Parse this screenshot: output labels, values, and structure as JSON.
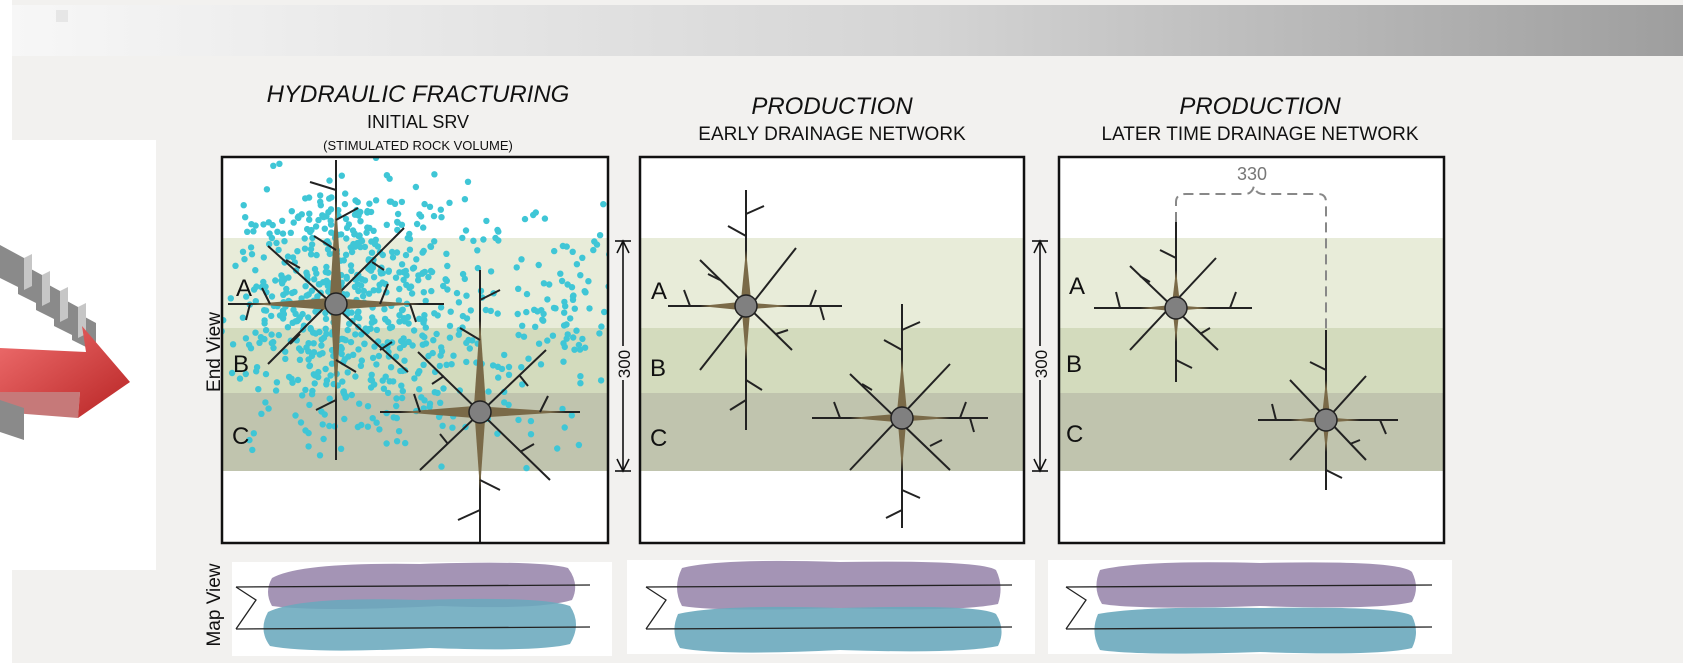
{
  "panels": [
    {
      "title": "HYDRAULIC FRACTURING",
      "subtitle": "INITIAL   SRV",
      "note": "(STIMULATED ROCK VOLUME)"
    },
    {
      "title": "PRODUCTION",
      "subtitle": "EARLY DRAINAGE NETWORK"
    },
    {
      "title": "PRODUCTION",
      "subtitle": "LATER TIME DRAINAGE NETWORK",
      "spacing_label": "330"
    }
  ],
  "layers": [
    "A",
    "B",
    "C"
  ],
  "side_labels": {
    "end_view": "End View",
    "map_view": "Map View"
  },
  "thickness_label": "300",
  "colors": {
    "layer_a": "#e8ecd9",
    "layer_b": "#d3dbbd",
    "layer_c": "#c0c4ae",
    "proppant": "#3fc6d6",
    "purple_zone": "#9a88ad",
    "teal_zone": "#6aa9bd",
    "header_bar_end": "#9e9e9e",
    "arrow_red": "#d63c3c"
  }
}
